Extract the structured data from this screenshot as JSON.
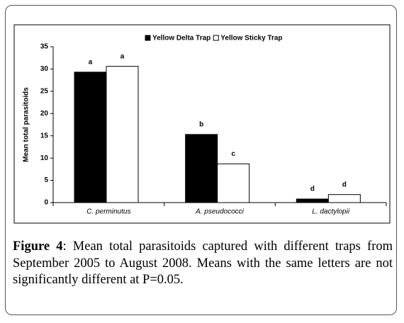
{
  "chart_data": {
    "type": "bar",
    "y_label": "Mean total parasitoids",
    "categories": [
      "C. perminutus",
      "A. pseudococci",
      "L. dactylopii"
    ],
    "series": [
      {
        "name": "Yellow Delta Trap",
        "color": "#000000",
        "values": [
          29.3,
          15.3,
          0.8
        ],
        "letters": [
          "a",
          "b",
          "d"
        ]
      },
      {
        "name": "Yellow Sticky Trap",
        "color": "#ffffff",
        "values": [
          30.6,
          8.7,
          1.8
        ],
        "letters": [
          "a",
          "c",
          "d"
        ]
      }
    ],
    "ylim": [
      0,
      35
    ],
    "yticks": [
      0,
      5,
      10,
      15,
      20,
      25,
      30,
      35
    ]
  },
  "caption": {
    "label": "Figure 4",
    "text": ": Mean total parasitoids captured with different traps from September 2005 to August 2008. Means with the same letters are not significantly different at P=0.05."
  }
}
